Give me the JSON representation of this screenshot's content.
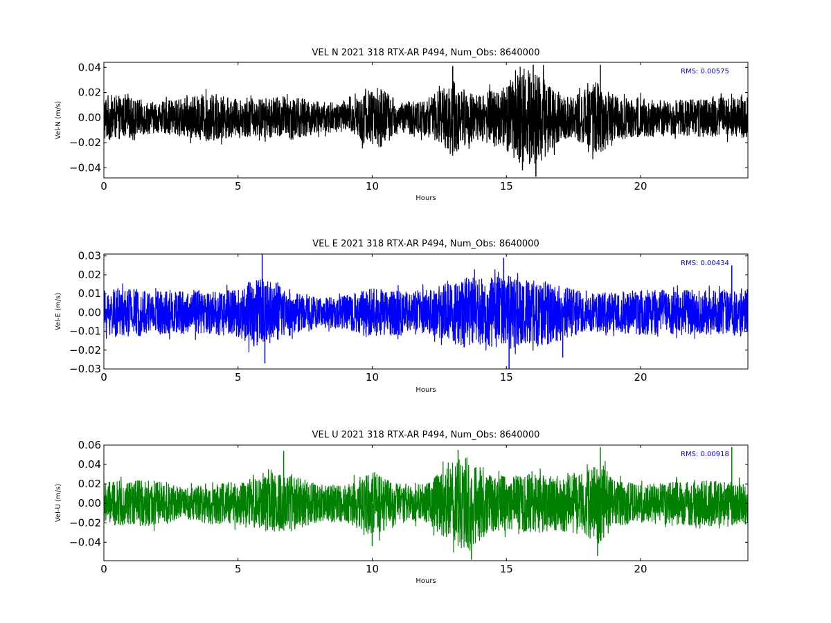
{
  "chart_data": [
    {
      "type": "line",
      "title": "VEL N 2021 318 RTX-AR  P494, Num_Obs: 8640000",
      "xlabel": "Hours",
      "ylabel": "Vel-N (m/s)",
      "xlim": [
        0,
        24
      ],
      "ylim": [
        -0.048,
        0.044
      ],
      "x_ticks": [
        0,
        5,
        10,
        15,
        20
      ],
      "x_tick_labels": [
        "0",
        "5",
        "10",
        "15",
        "20"
      ],
      "y_ticks": [
        -0.04,
        -0.02,
        0.0,
        0.02,
        0.04
      ],
      "y_tick_labels": [
        "−0.04",
        "−0.02",
        "0.00",
        "0.02",
        "0.04"
      ],
      "annotation": "RMS:  0.00575",
      "color": "#000000",
      "grid": false,
      "series": [
        {
          "name": "",
          "envelope_hours": [
            0,
            1,
            2,
            3,
            4,
            5,
            6,
            7,
            8,
            9,
            9.8,
            10.3,
            11,
            12,
            12.5,
            13,
            13.5,
            14,
            15,
            15.5,
            16,
            16.5,
            17,
            17.5,
            18,
            18.5,
            19,
            20,
            21,
            22,
            23,
            24
          ],
          "envelope_amplitude": [
            0.019,
            0.016,
            0.012,
            0.016,
            0.019,
            0.015,
            0.016,
            0.018,
            0.013,
            0.012,
            0.022,
            0.025,
            0.012,
            0.015,
            0.022,
            0.031,
            0.022,
            0.018,
            0.028,
            0.036,
            0.039,
            0.032,
            0.018,
            0.016,
            0.024,
            0.031,
            0.018,
            0.016,
            0.014,
            0.015,
            0.016,
            0.017
          ],
          "peaks": [
            [
              13.0,
              0.041
            ],
            [
              16.0,
              0.042
            ],
            [
              16.1,
              -0.047
            ],
            [
              18.5,
              0.042
            ],
            [
              15.6,
              -0.042
            ]
          ]
        }
      ]
    },
    {
      "type": "line",
      "title": "VEL E 2021 318 RTX-AR  P494, Num_Obs: 8640000",
      "xlabel": "Hours",
      "ylabel": "Vel-E (m/s)",
      "xlim": [
        0,
        24
      ],
      "ylim": [
        -0.03,
        0.031
      ],
      "x_ticks": [
        0,
        5,
        10,
        15,
        20
      ],
      "x_tick_labels": [
        "0",
        "5",
        "10",
        "15",
        "20"
      ],
      "y_ticks": [
        -0.03,
        -0.02,
        -0.01,
        0.0,
        0.01,
        0.02,
        0.03
      ],
      "y_tick_labels": [
        "−0.03",
        "−0.02",
        "−0.01",
        "0.00",
        "0.01",
        "0.02",
        "0.03"
      ],
      "annotation": "RMS:  0.00434",
      "color": "#0000ff",
      "grid": false,
      "series": [
        {
          "name": "",
          "envelope_hours": [
            0,
            1,
            2,
            3,
            4,
            5,
            5.5,
            6,
            7,
            8,
            9,
            10,
            11,
            12,
            13,
            13.5,
            14,
            14.5,
            15,
            15.5,
            16,
            16.5,
            17,
            18,
            19,
            20,
            21,
            22,
            23,
            24
          ],
          "envelope_amplitude": [
            0.012,
            0.013,
            0.012,
            0.012,
            0.012,
            0.013,
            0.018,
            0.019,
            0.012,
            0.008,
            0.009,
            0.013,
            0.012,
            0.012,
            0.016,
            0.019,
            0.018,
            0.019,
            0.021,
            0.017,
            0.017,
            0.018,
            0.015,
            0.01,
            0.011,
            0.012,
            0.012,
            0.012,
            0.012,
            0.013
          ],
          "peaks": [
            [
              5.9,
              0.031
            ],
            [
              14.9,
              0.029
            ],
            [
              15.1,
              -0.031
            ],
            [
              23.4,
              0.025
            ],
            [
              6.0,
              -0.027
            ],
            [
              17.1,
              -0.024
            ]
          ]
        }
      ]
    },
    {
      "type": "line",
      "title": "VEL U 2021 318 RTX-AR  P494, Num_Obs: 8640000",
      "xlabel": "Hours",
      "ylabel": "Vel-U (m/s)",
      "xlim": [
        0,
        24
      ],
      "ylim": [
        -0.059,
        0.06
      ],
      "x_ticks": [
        0,
        5,
        10,
        15,
        20
      ],
      "x_tick_labels": [
        "0",
        "5",
        "10",
        "15",
        "20"
      ],
      "y_ticks": [
        -0.04,
        -0.02,
        0.0,
        0.02,
        0.04,
        0.06
      ],
      "y_tick_labels": [
        "−0.04",
        "−0.02",
        "0.00",
        "0.02",
        "0.04",
        "0.06"
      ],
      "annotation": "RMS:  0.00918",
      "color": "#008000",
      "grid": false,
      "series": [
        {
          "name": "",
          "envelope_hours": [
            0,
            1,
            2,
            3,
            4,
            5,
            6,
            7,
            8,
            9,
            10,
            11,
            12,
            12.5,
            13,
            13.5,
            14,
            14.5,
            15,
            16,
            17,
            18,
            18.5,
            19,
            20,
            21,
            22,
            23,
            24
          ],
          "envelope_amplitude": [
            0.022,
            0.024,
            0.024,
            0.016,
            0.022,
            0.022,
            0.029,
            0.03,
            0.019,
            0.02,
            0.034,
            0.021,
            0.02,
            0.031,
            0.044,
            0.048,
            0.04,
            0.03,
            0.028,
            0.031,
            0.028,
            0.035,
            0.044,
            0.024,
            0.02,
            0.022,
            0.024,
            0.024,
            0.022
          ],
          "peaks": [
            [
              6.7,
              0.054
            ],
            [
              13.2,
              0.055
            ],
            [
              18.5,
              0.058
            ],
            [
              23.4,
              0.058
            ],
            [
              13.7,
              -0.058
            ],
            [
              18.4,
              -0.054
            ],
            [
              10.0,
              -0.044
            ]
          ]
        }
      ]
    }
  ]
}
